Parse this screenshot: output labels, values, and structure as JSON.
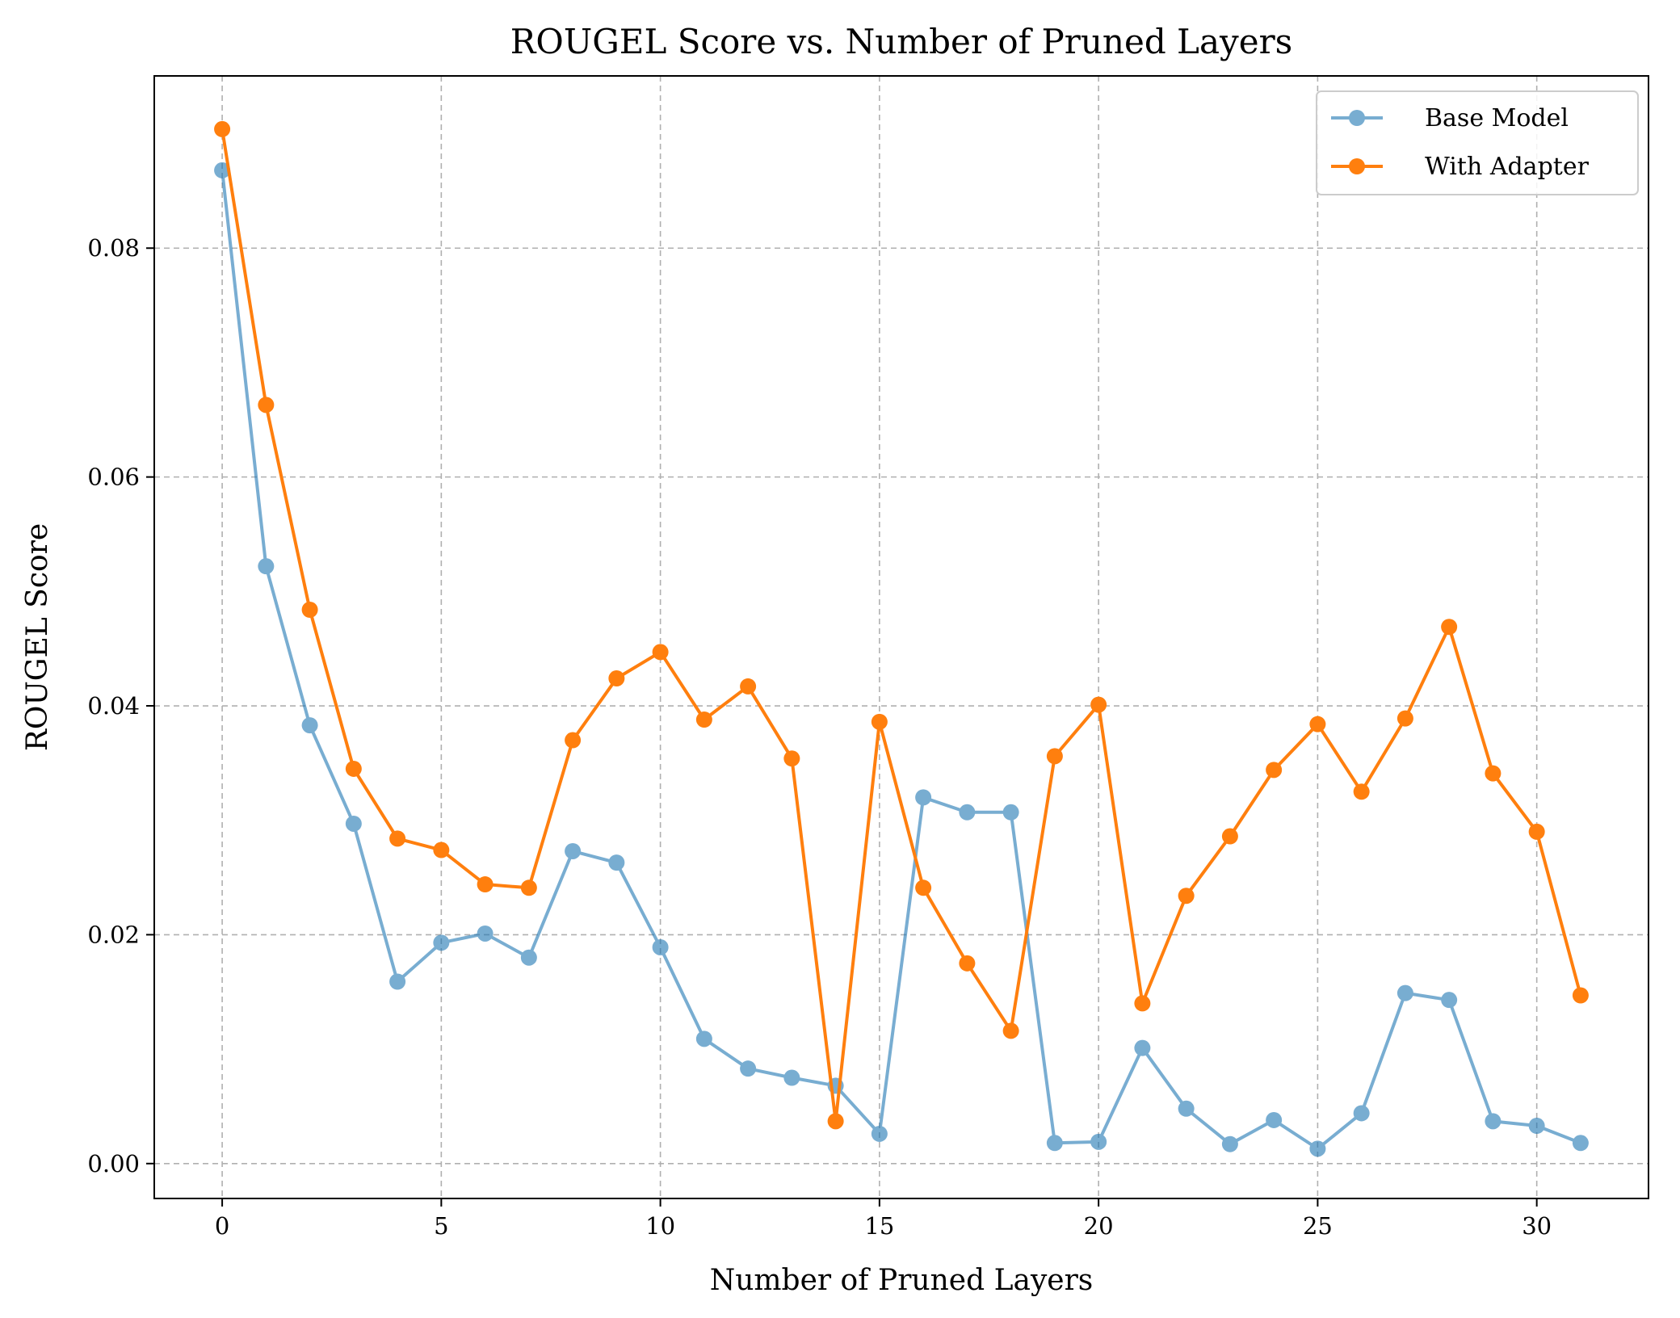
{
  "chart_data": {
    "type": "line",
    "title": "ROUGEL Score vs. Number of Pruned Layers",
    "xlabel": "Number of Pruned Layers",
    "ylabel": "ROUGEL Score",
    "xlim": [
      -1.55,
      32.55
    ],
    "ylim": [
      -0.00305,
      0.09505
    ],
    "x_ticks": [
      0,
      5,
      10,
      15,
      20,
      25,
      30
    ],
    "x_tick_labels": [
      "0",
      "5",
      "10",
      "15",
      "20",
      "25",
      "30"
    ],
    "y_ticks": [
      0.0,
      0.02,
      0.04,
      0.06,
      0.08
    ],
    "y_tick_labels": [
      "0.00",
      "0.02",
      "0.04",
      "0.06",
      "0.08"
    ],
    "grid": true,
    "legend_position": "top-right",
    "x": [
      0,
      1,
      2,
      3,
      4,
      5,
      6,
      7,
      8,
      9,
      10,
      11,
      12,
      13,
      14,
      15,
      16,
      17,
      18,
      19,
      20,
      21,
      22,
      23,
      24,
      25,
      26,
      27,
      28,
      29,
      30,
      31
    ],
    "series": [
      {
        "name": "Base Model",
        "color": "#1f77b4",
        "alpha": 0.6,
        "marker": "circle",
        "values": [
          0.0868,
          0.0522,
          0.0383,
          0.0297,
          0.0159,
          0.0193,
          0.0201,
          0.018,
          0.0273,
          0.0263,
          0.0189,
          0.0109,
          0.0083,
          0.0075,
          0.0068,
          0.0026,
          0.032,
          0.0307,
          0.0307,
          0.0018,
          0.0019,
          0.0101,
          0.0048,
          0.0017,
          0.0038,
          0.0013,
          0.0044,
          0.0149,
          0.0143,
          0.0037,
          0.0033,
          0.0018
        ]
      },
      {
        "name": "With Adapter",
        "color": "#ff7f0e",
        "alpha": 1.0,
        "marker": "circle",
        "values": [
          0.0904,
          0.0663,
          0.0484,
          0.0345,
          0.0284,
          0.0274,
          0.0244,
          0.0241,
          0.037,
          0.0424,
          0.0447,
          0.0388,
          0.0417,
          0.0354,
          0.0037,
          0.0386,
          0.0241,
          0.0175,
          0.0116,
          0.0356,
          0.0401,
          0.014,
          0.0234,
          0.0286,
          0.0344,
          0.0384,
          0.0325,
          0.0389,
          0.0469,
          0.0341,
          0.029,
          0.0147
        ]
      }
    ]
  }
}
